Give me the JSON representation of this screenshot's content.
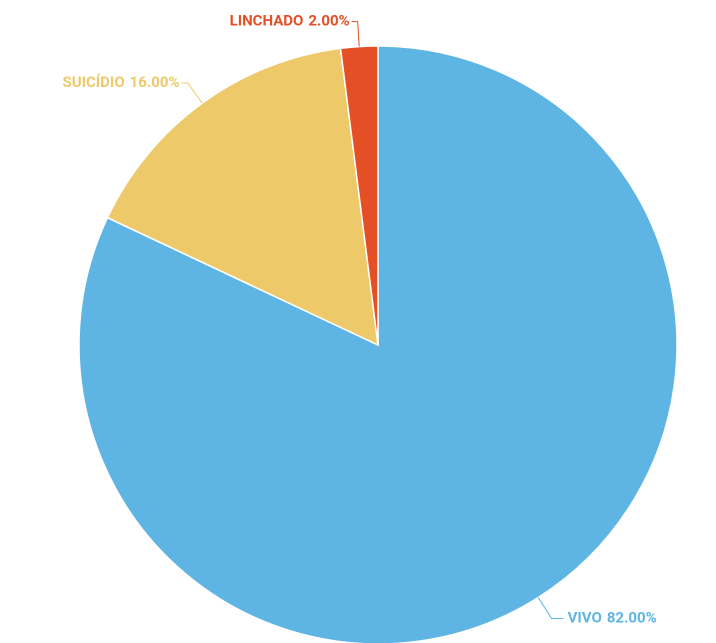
{
  "chart_data": {
    "type": "pie",
    "categories": [
      "VIVO",
      "SUICÍDIO",
      "LINCHADO"
    ],
    "values": [
      82,
      16,
      2
    ],
    "value_labels": [
      "82.00%",
      "16.00%",
      "2.00%"
    ],
    "colors": [
      "#5eb5e3",
      "#eec96a",
      "#e44f26"
    ]
  }
}
